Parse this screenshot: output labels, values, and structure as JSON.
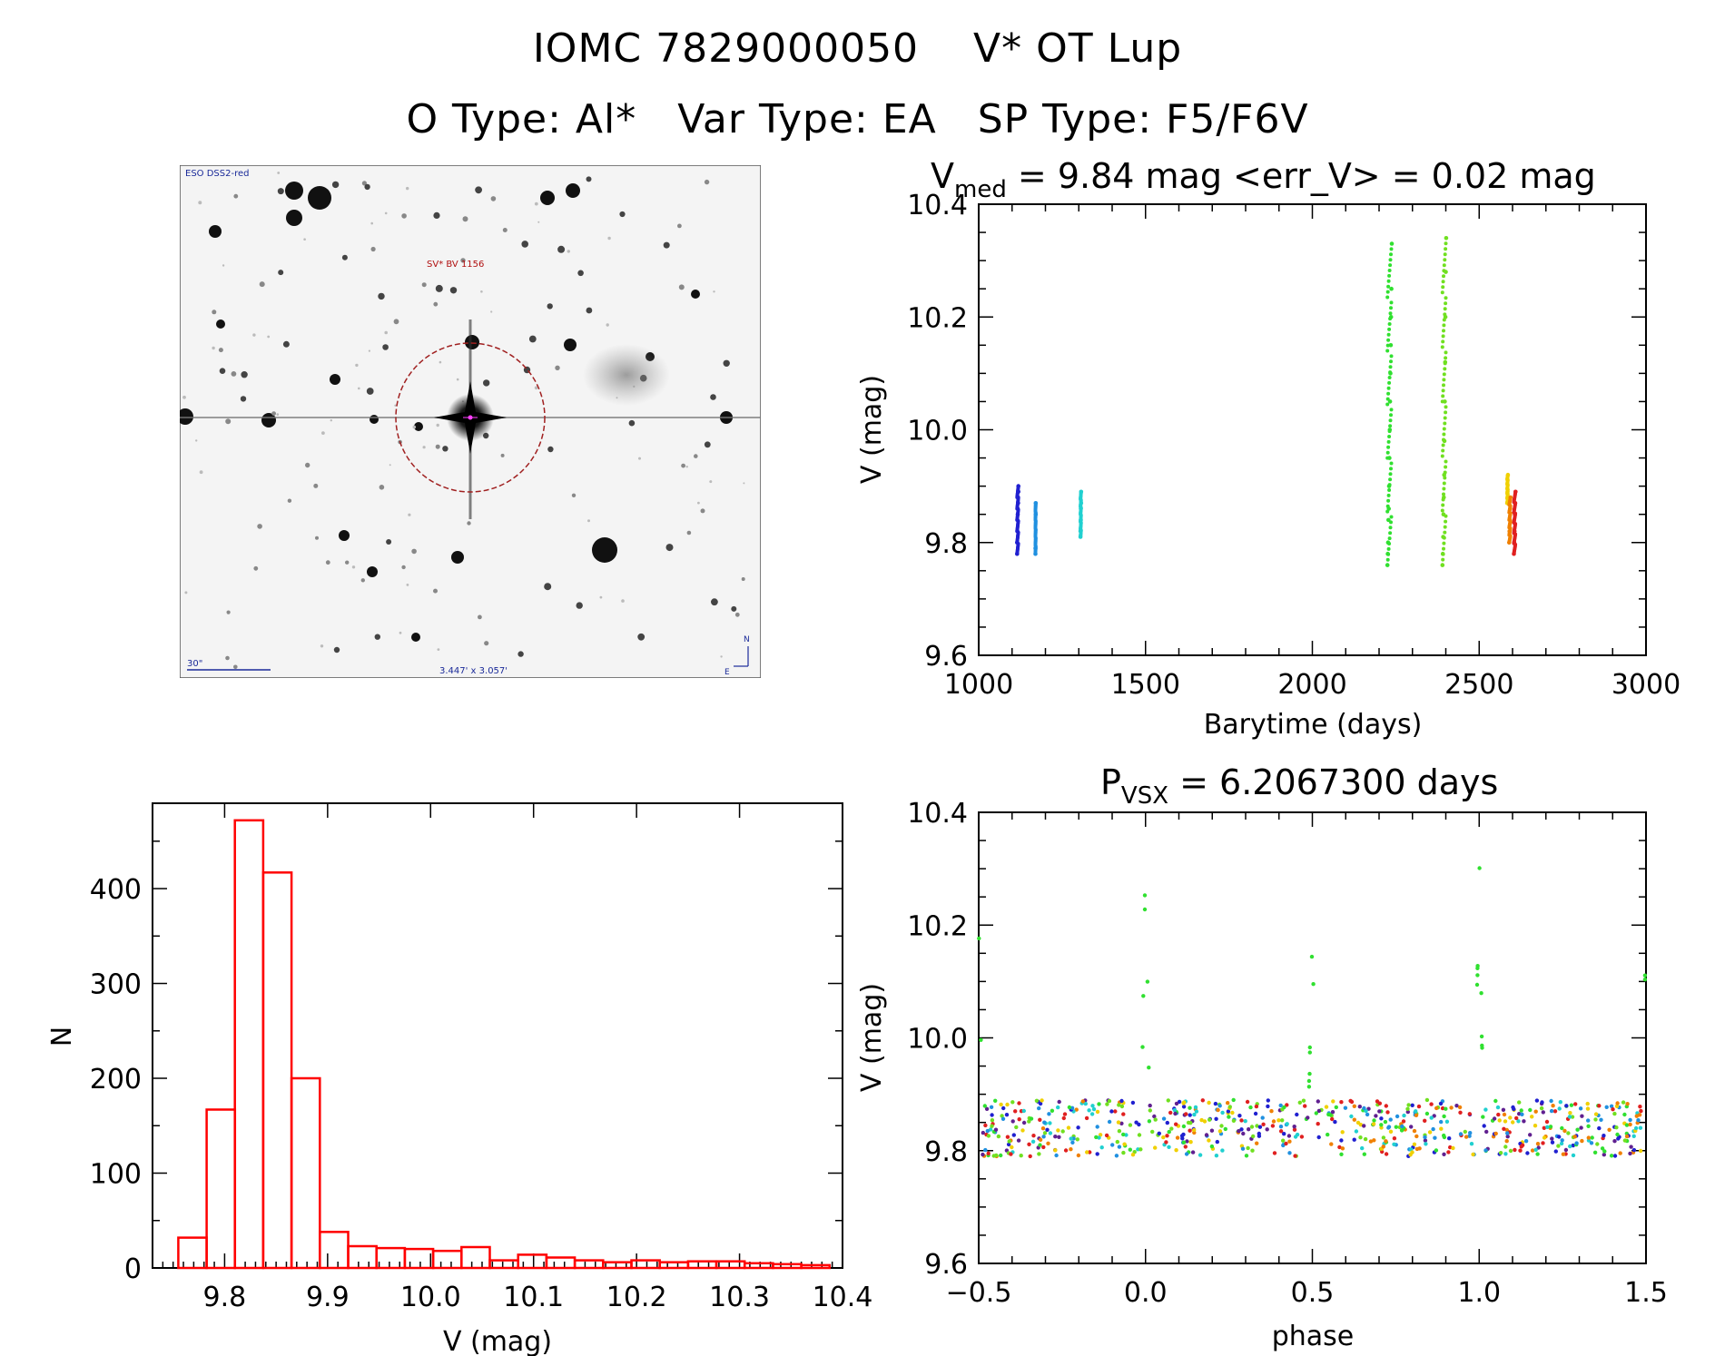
{
  "header": {
    "line1_id": "IOMC 7829000050",
    "line1_name": "V* OT Lup",
    "line2_otype": "O Type: Al*",
    "line2_vartype": "Var Type: EA",
    "line2_sptype": "SP Type: F5/F6V"
  },
  "finder": {
    "survey_label": "ESO DSS2-red",
    "target_label": "SV* BV 1156",
    "scale_label": "30\"",
    "fov_label": "3.447' x 3.057'",
    "north_label": "N",
    "east_label": "E"
  },
  "chart_data": [
    {
      "type": "scatter",
      "name": "light-curve",
      "title_prefix": "V",
      "title_sub": "med",
      "title_rest": " = 9.84 mag  <err_V> = 0.02 mag",
      "xlabel": "Barytime (days)",
      "ylabel": "V (mag)",
      "xlim": [
        1000,
        3000
      ],
      "ylim": [
        10.4,
        9.6
      ],
      "xticks": [
        1000,
        1500,
        2000,
        2500,
        3000
      ],
      "xtick_labels": [
        "1000",
        "1500",
        "2000",
        "2500",
        "3000"
      ],
      "yticks": [
        9.6,
        9.8,
        10.0,
        10.2,
        10.4
      ],
      "ytick_labels": [
        "9.6",
        "9.8",
        "10.0",
        "10.2",
        "10.4"
      ],
      "series": [
        {
          "name": "season-1",
          "color": "#2020d0",
          "x": [
            1115,
            1115,
            1116,
            1116,
            1117,
            1117,
            1118,
            1118,
            1119,
            1119
          ],
          "y": [
            9.78,
            9.8,
            9.82,
            9.84,
            9.85,
            9.86,
            9.87,
            9.88,
            9.89,
            9.9
          ]
        },
        {
          "name": "season-2",
          "color": "#2090e0",
          "x": [
            1170,
            1170,
            1171,
            1171
          ],
          "y": [
            9.78,
            9.79,
            9.85,
            9.87
          ]
        },
        {
          "name": "season-3",
          "color": "#20d0d0",
          "x": [
            1305,
            1305,
            1306,
            1306,
            1307,
            1307
          ],
          "y": [
            9.81,
            9.82,
            9.84,
            9.86,
            9.87,
            9.89
          ]
        },
        {
          "name": "season-4",
          "color": "#30e030",
          "x": [
            2225,
            2226,
            2227,
            2228,
            2229,
            2230,
            2231,
            2232,
            2233,
            2234,
            2235,
            2236,
            2237,
            2238
          ],
          "y": [
            9.76,
            9.78,
            9.8,
            9.84,
            9.86,
            9.9,
            9.95,
            10.0,
            10.05,
            10.1,
            10.15,
            10.2,
            10.25,
            10.33
          ]
        },
        {
          "name": "season-5",
          "color": "#70e020",
          "x": [
            2390,
            2391,
            2392,
            2393,
            2394,
            2395,
            2396,
            2397,
            2398,
            2399,
            2400,
            2401
          ],
          "y": [
            9.76,
            9.78,
            9.81,
            9.85,
            9.88,
            9.92,
            9.98,
            10.05,
            10.12,
            10.2,
            10.28,
            10.34
          ]
        },
        {
          "name": "season-6",
          "color": "#f0d000",
          "x": [
            2584,
            2585,
            2586
          ],
          "y": [
            9.87,
            9.89,
            9.92
          ]
        },
        {
          "name": "season-7",
          "color": "#f08000",
          "x": [
            2590,
            2591,
            2592,
            2593,
            2594
          ],
          "y": [
            9.8,
            9.82,
            9.84,
            9.86,
            9.88
          ]
        },
        {
          "name": "season-8",
          "color": "#e02020",
          "x": [
            2604,
            2605,
            2606,
            2607,
            2608,
            2609
          ],
          "y": [
            9.78,
            9.8,
            9.82,
            9.85,
            9.87,
            9.89
          ]
        }
      ]
    },
    {
      "type": "bar",
      "name": "histogram",
      "xlabel": "V (mag)",
      "ylabel": "N",
      "xlim": [
        9.73,
        10.4
      ],
      "ylim": [
        0,
        490
      ],
      "color": "#ff0000",
      "bin_width": 0.0275,
      "bin_starts": [
        9.755,
        9.7825,
        9.81,
        9.8375,
        9.865,
        9.8925,
        9.92,
        9.9475,
        9.975,
        10.0025,
        10.03,
        10.0575,
        10.085,
        10.1125,
        10.14,
        10.1675,
        10.195,
        10.2225,
        10.25,
        10.2775,
        10.305,
        10.3325,
        10.36
      ],
      "values": [
        32,
        167,
        472,
        417,
        200,
        38,
        23,
        21,
        20,
        18,
        22,
        8,
        14,
        11,
        8,
        6,
        8,
        6,
        7,
        7,
        5,
        4,
        3
      ],
      "xticks": [
        9.8,
        9.9,
        10.0,
        10.1,
        10.2,
        10.3,
        10.4
      ],
      "xtick_labels": [
        "9.8",
        "9.9",
        "10.0",
        "10.1",
        "10.2",
        "10.3",
        "10.4"
      ],
      "yticks": [
        0,
        100,
        200,
        300,
        400
      ],
      "ytick_labels": [
        "0",
        "100",
        "200",
        "300",
        "400"
      ]
    },
    {
      "type": "scatter",
      "name": "phased-light-curve",
      "title_prefix": "P",
      "title_sub": "VSX",
      "title_rest": " = 6.2067300 days",
      "xlabel": "phase",
      "ylabel": "V (mag)",
      "xlim": [
        -0.5,
        1.5
      ],
      "ylim": [
        10.4,
        9.6
      ],
      "xticks": [
        -0.5,
        0.0,
        0.5,
        1.0,
        1.5
      ],
      "xtick_labels": [
        "−0.5",
        "0.0",
        "0.5",
        "1.0",
        "1.5"
      ],
      "yticks": [
        9.6,
        9.8,
        10.0,
        10.2,
        10.4
      ],
      "ytick_labels": [
        "9.6",
        "9.8",
        "10.0",
        "10.2",
        "10.4"
      ],
      "baseline_mag": 9.84,
      "primary_eclipse_depth": 10.33,
      "secondary_eclipse_depth": 10.19,
      "colors": [
        "#30e030",
        "#70e020",
        "#2020d0",
        "#2090e0",
        "#20d0d0",
        "#e02020",
        "#f08000",
        "#f0d000",
        "#602090"
      ]
    }
  ]
}
